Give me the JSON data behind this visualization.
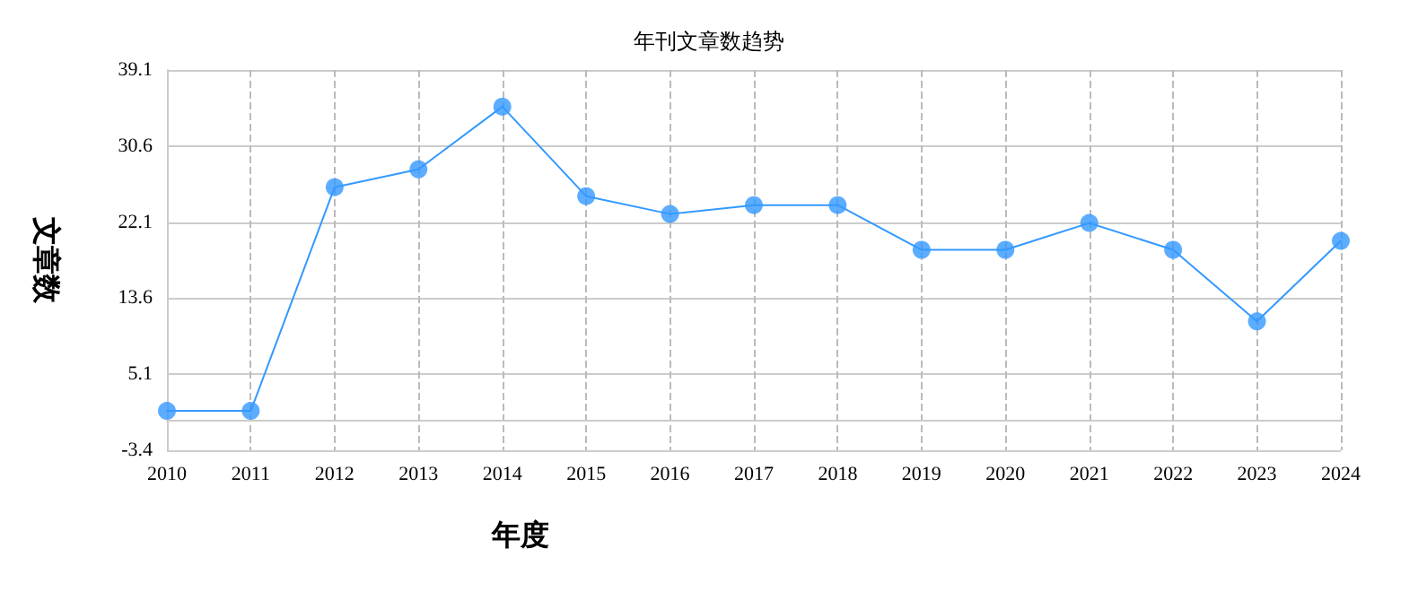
{
  "chart_data": {
    "type": "line",
    "title": "年刊文章数趋势",
    "xlabel": "年度",
    "ylabel": "文章数",
    "categories": [
      "2010",
      "2011",
      "2012",
      "2013",
      "2014",
      "2015",
      "2016",
      "2017",
      "2018",
      "2019",
      "2020",
      "2021",
      "2022",
      "2023",
      "2024"
    ],
    "series": [
      {
        "color": "#3399ff",
        "values": [
          1,
          1,
          26,
          28,
          35,
          25,
          23,
          24,
          24,
          19,
          19,
          22,
          19,
          11,
          20
        ]
      }
    ],
    "ylim": [
      -3.4,
      39.1
    ],
    "yticks": [
      -3.4,
      5.1,
      13.6,
      22.1,
      30.6,
      39.1
    ],
    "grid": true,
    "marker": "circle",
    "line_style": "solid"
  }
}
